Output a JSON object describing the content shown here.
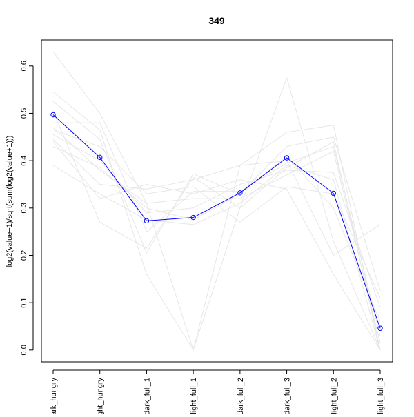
{
  "chart_data": {
    "type": "line",
    "title": "349",
    "xlabel": "",
    "ylabel": "log2(value+1)/sqrt(sum(log2(value+1)))",
    "ylim": [
      -0.025,
      0.655
    ],
    "y_ticks": [
      0.0,
      0.1,
      0.2,
      0.3,
      0.4,
      0.5,
      0.6
    ],
    "y_tick_labels": [
      "0.0",
      "0.1",
      "0.2",
      "0.3",
      "0.4",
      "0.5",
      "0.6"
    ],
    "categories": [
      "dark_hungry",
      "light_hungry",
      "dark_full_1",
      "light_full_1",
      "dark_full_2",
      "dark_full_3",
      "light_full_2",
      "light_full_3"
    ],
    "category_labels_visible": [
      "ark_hungry",
      "ght_hungry",
      "dark_full_1",
      "light_full_1",
      "dark_full_2",
      "dark_full_3",
      "light_full_2",
      "light_full_3"
    ],
    "grid": false,
    "legend": "none",
    "colors": {
      "highlight": "#0000ff",
      "background": "#e6e6e6",
      "axis": "#000000"
    },
    "highlight_series": {
      "values": [
        0.497,
        0.407,
        0.273,
        0.28,
        0.332,
        0.406,
        0.331,
        0.046
      ]
    },
    "background_series": [
      {
        "values": [
          0.63,
          0.5,
          0.31,
          0.0,
          0.3,
          0.575,
          0.23,
          0.0
        ]
      },
      {
        "values": [
          0.545,
          0.465,
          0.16,
          0.0,
          0.39,
          0.46,
          0.475,
          0.0
        ]
      },
      {
        "values": [
          0.525,
          0.445,
          0.205,
          0.372,
          0.33,
          0.43,
          0.45,
          0.125
        ]
      },
      {
        "values": [
          0.505,
          0.27,
          0.215,
          0.365,
          0.3,
          0.385,
          0.44,
          0.0
        ]
      },
      {
        "values": [
          0.48,
          0.48,
          0.25,
          0.335,
          0.335,
          0.395,
          0.43,
          0.03
        ]
      },
      {
        "values": [
          0.47,
          0.38,
          0.31,
          0.32,
          0.32,
          0.37,
          0.42,
          0.015
        ]
      },
      {
        "values": [
          0.465,
          0.43,
          0.33,
          0.345,
          0.27,
          0.345,
          0.33,
          0.11
        ]
      },
      {
        "values": [
          0.455,
          0.4,
          0.29,
          0.3,
          0.35,
          0.38,
          0.375,
          0.09
        ]
      },
      {
        "values": [
          0.445,
          0.35,
          0.34,
          0.36,
          0.39,
          0.4,
          0.2,
          0.265
        ]
      },
      {
        "values": [
          0.44,
          0.32,
          0.35,
          0.33,
          0.36,
          0.34,
          0.16,
          0.0
        ]
      },
      {
        "values": [
          0.43,
          0.385,
          0.3,
          0.275,
          0.33,
          0.41,
          0.3,
          0.06
        ]
      },
      {
        "values": [
          0.39,
          0.33,
          0.275,
          0.265,
          0.31,
          0.39,
          0.36,
          0.0
        ]
      }
    ]
  }
}
